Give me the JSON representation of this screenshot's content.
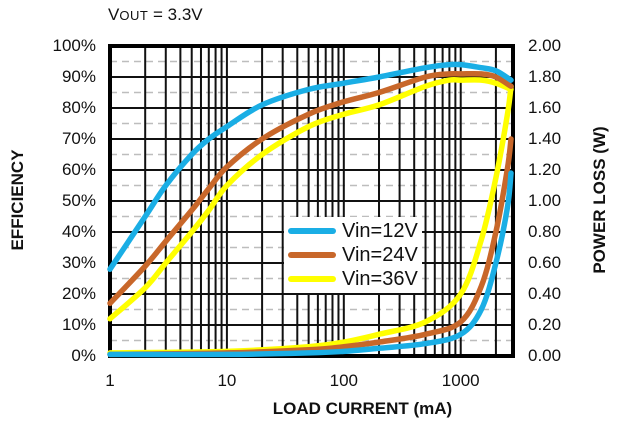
{
  "title": {
    "prefix": "V",
    "sub": "OUT",
    "rest": " = 3.3V"
  },
  "chart_data": {
    "type": "line",
    "title": "VOUT = 3.3V",
    "xlabel": "LOAD CURRENT  (mA)",
    "ylabel": "EFFICIENCY",
    "y2label": "POWER LOSS (W)",
    "xscale": "log",
    "xlim": [
      1,
      2800
    ],
    "ylim": [
      0,
      100
    ],
    "y2lim": [
      0,
      2.0
    ],
    "x_ticks": [
      "1",
      "10",
      "100",
      "1000"
    ],
    "y_ticks": [
      "0%",
      "10%",
      "20%",
      "30%",
      "40%",
      "50%",
      "60%",
      "70%",
      "80%",
      "90%",
      "100%"
    ],
    "y2_ticks": [
      "0.00",
      "0.20",
      "0.40",
      "0.60",
      "0.80",
      "1.00",
      "1.20",
      "1.40",
      "1.60",
      "1.80",
      "2.00"
    ],
    "grid": true,
    "legend_position": "center-right",
    "series": [
      {
        "name": "Vin=12V",
        "color": "#1aaee5",
        "axis": "efficiency",
        "x": [
          1,
          2,
          3,
          5,
          7,
          10,
          20,
          50,
          100,
          200,
          500,
          800,
          1000,
          1500,
          2000,
          2800
        ],
        "values": [
          28,
          45,
          55,
          65,
          70,
          74,
          81,
          86,
          88,
          90,
          93,
          94,
          94,
          93,
          92,
          89
        ]
      },
      {
        "name": "Vin=24V",
        "color": "#c8672a",
        "axis": "efficiency",
        "x": [
          1,
          2,
          3,
          5,
          7,
          10,
          20,
          50,
          100,
          200,
          500,
          800,
          1000,
          1500,
          2000,
          2800
        ],
        "values": [
          17,
          29,
          37,
          47,
          54,
          61,
          70,
          78,
          82,
          85,
          90,
          91,
          91,
          91,
          90,
          87
        ]
      },
      {
        "name": "Vin=36V",
        "color": "#ffff00",
        "axis": "efficiency",
        "x": [
          1,
          2,
          3,
          5,
          7,
          10,
          20,
          50,
          100,
          200,
          500,
          800,
          1000,
          1500,
          2000,
          2800
        ],
        "values": [
          12,
          22,
          30,
          40,
          47,
          55,
          65,
          74,
          78,
          81,
          87,
          89,
          89,
          89,
          88,
          86
        ]
      },
      {
        "name": "Vin=12V loss",
        "color": "#1aaee5",
        "axis": "power_loss",
        "x": [
          1,
          10,
          50,
          100,
          200,
          500,
          1000,
          1500,
          2000,
          2500,
          2800
        ],
        "values": [
          0.01,
          0.01,
          0.02,
          0.03,
          0.05,
          0.08,
          0.14,
          0.3,
          0.6,
          0.95,
          1.18
        ]
      },
      {
        "name": "Vin=24V loss",
        "color": "#c8672a",
        "axis": "power_loss",
        "x": [
          1,
          10,
          50,
          100,
          200,
          500,
          1000,
          1500,
          2000,
          2500,
          2800
        ],
        "values": [
          0.01,
          0.02,
          0.04,
          0.06,
          0.09,
          0.14,
          0.22,
          0.45,
          0.8,
          1.2,
          1.4
        ]
      },
      {
        "name": "Vin=36V loss",
        "color": "#ffff00",
        "axis": "power_loss",
        "x": [
          1,
          10,
          50,
          100,
          200,
          500,
          1000,
          1500,
          2000,
          2500,
          2800
        ],
        "values": [
          0.02,
          0.03,
          0.06,
          0.09,
          0.14,
          0.22,
          0.4,
          0.75,
          1.15,
          1.55,
          1.74
        ]
      }
    ]
  },
  "legend": [
    {
      "label": "Vin=12V",
      "color": "#1aaee5"
    },
    {
      "label": "Vin=24V",
      "color": "#c8672a"
    },
    {
      "label": "Vin=36V",
      "color": "#ffff00"
    }
  ]
}
